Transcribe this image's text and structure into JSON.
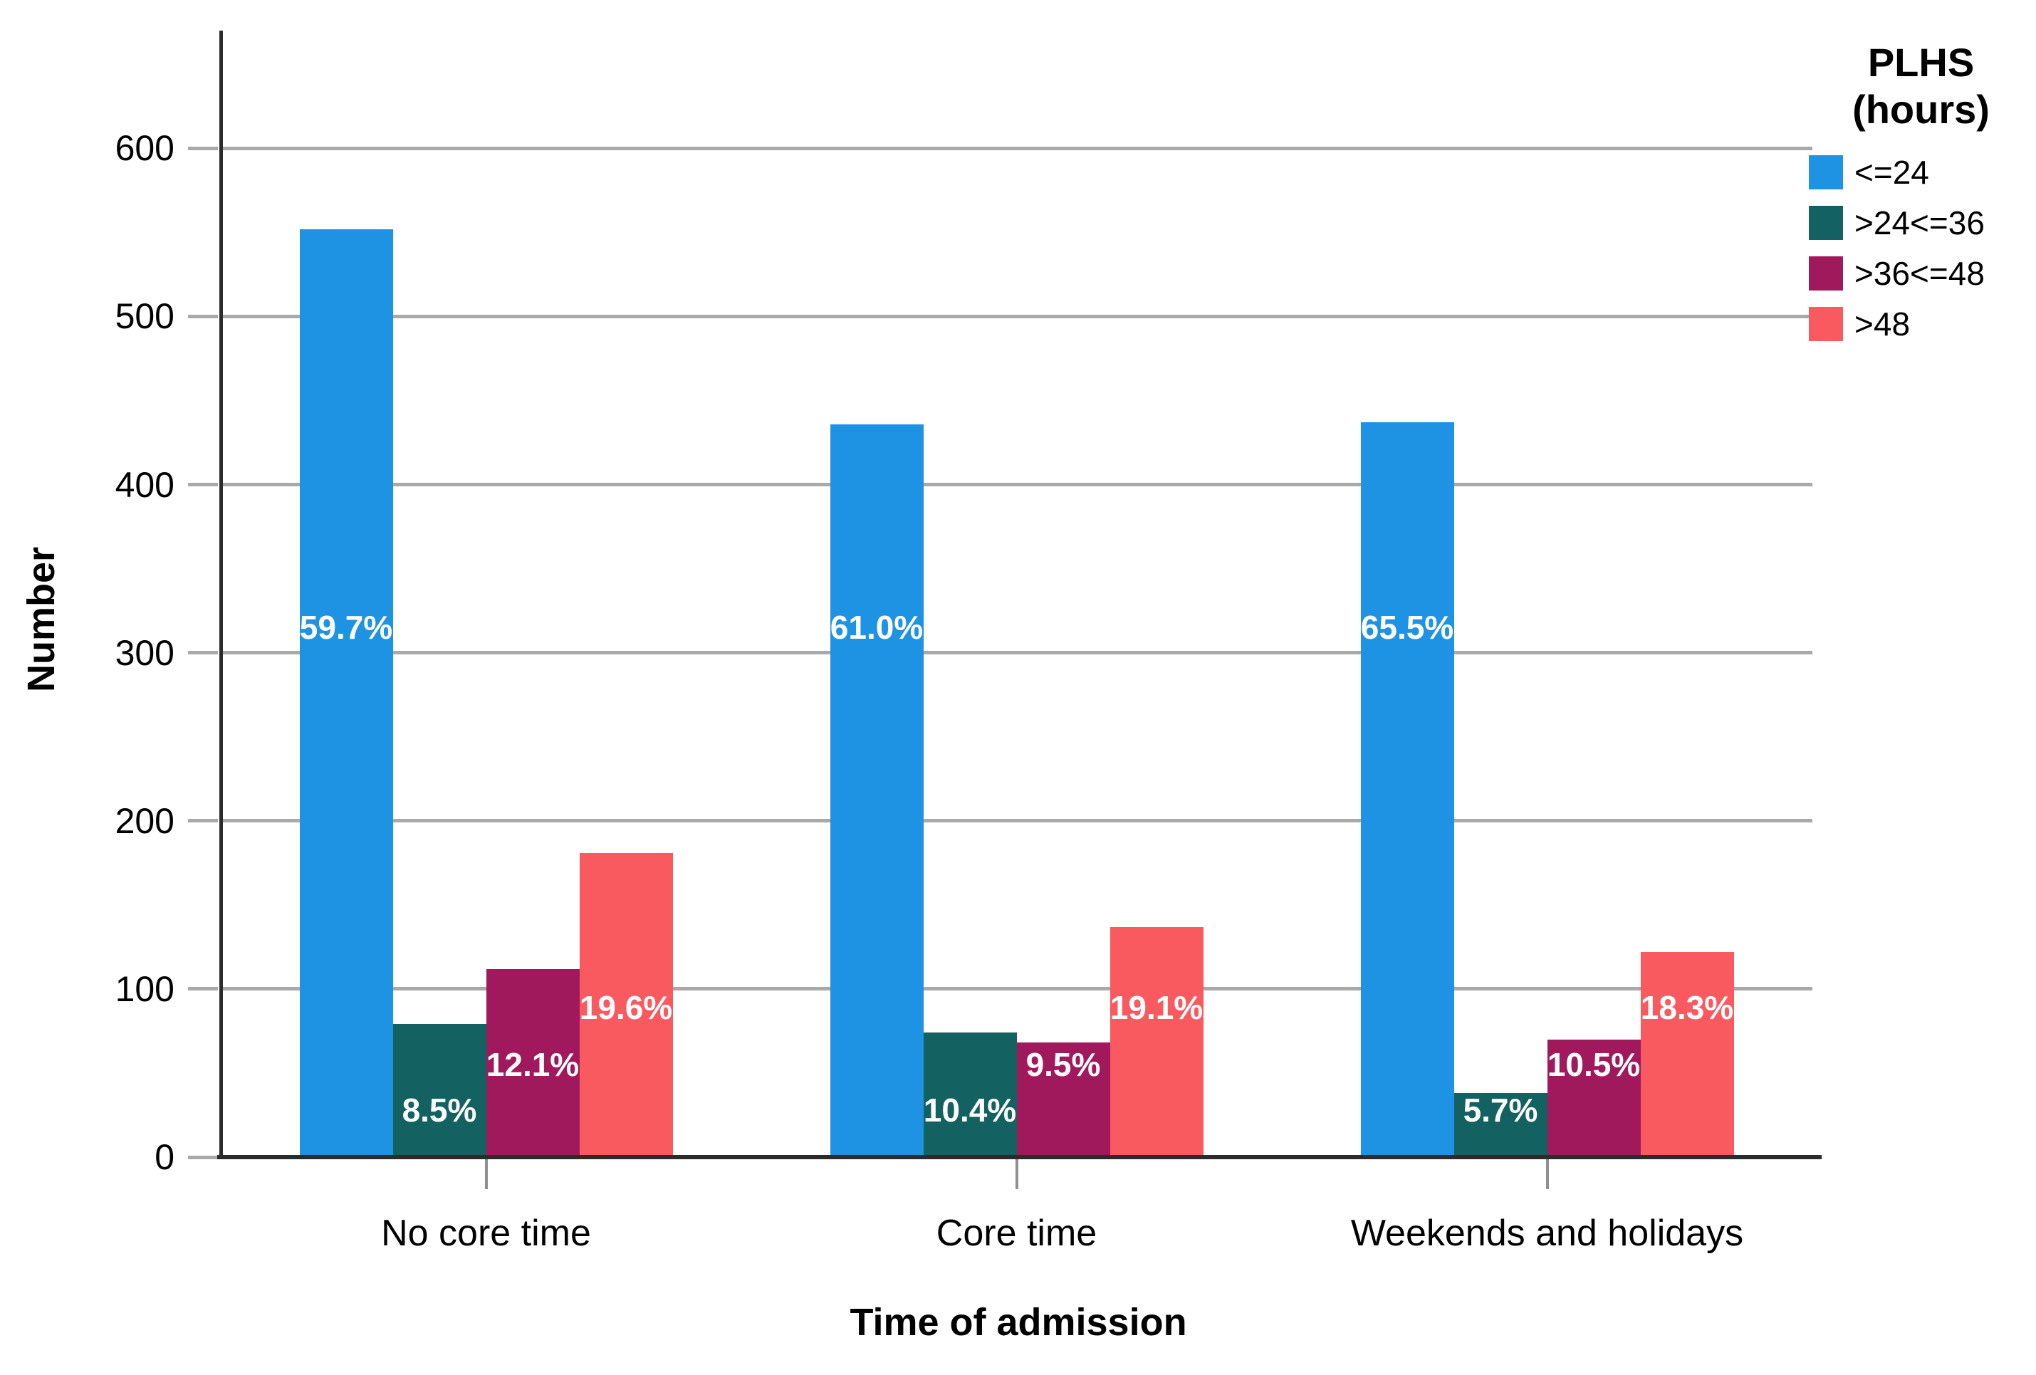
{
  "chart_data": {
    "type": "bar",
    "title": "",
    "xlabel": "Time of admission",
    "ylabel": "Number",
    "categories": [
      "No core time",
      "Core time",
      "Weekends and holidays"
    ],
    "series": [
      {
        "name": "<=24",
        "color": "#1e93e4",
        "values": [
          552,
          436,
          437
        ],
        "labels": [
          "59.7%",
          "61.0%",
          "65.5%"
        ],
        "label_y": 315
      },
      {
        "name": ">24<=36",
        "color": "#136160",
        "values": [
          79,
          74,
          38
        ],
        "labels": [
          "8.5%",
          "10.4%",
          "5.7%"
        ],
        "label_y": 28
      },
      {
        "name": ">36<=48",
        "color": "#a0195c",
        "values": [
          112,
          68,
          70
        ],
        "labels": [
          "12.1%",
          "9.5%",
          "10.5%"
        ],
        "label_y": 55
      },
      {
        "name": ">48",
        "color": "#f95a5f",
        "values": [
          181,
          137,
          122
        ],
        "labels": [
          "19.6%",
          "19.1%",
          "18.3%"
        ],
        "label_y": 89
      }
    ],
    "ylim": [
      0,
      670
    ],
    "yticks": [
      0,
      100,
      200,
      300,
      400,
      500,
      600
    ],
    "grid": true,
    "legend_title": "PLHS (hours)",
    "legend_title_lines": [
      "PLHS",
      "(hours)"
    ],
    "legend_position": "top-right",
    "colors": {
      "gridline": "#a9a9a9",
      "axis": "#2b2b2b",
      "bar_label_text": "#ffffff"
    }
  }
}
